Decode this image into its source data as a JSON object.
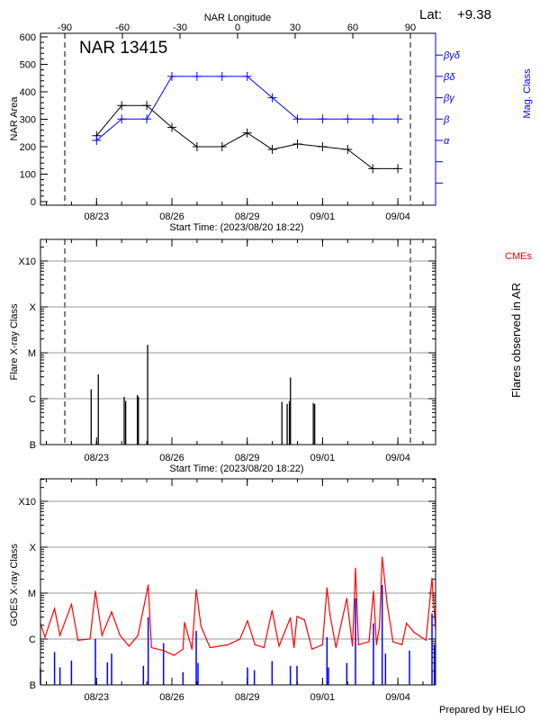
{
  "chart_data": [
    {
      "type": "line",
      "title": "NAR 13415",
      "lat_label": "Lat:",
      "lat_value": "+9.38",
      "top_axis_label": "NAR Longitude",
      "top_ticks": [
        -90,
        -60,
        -30,
        0,
        30,
        60,
        90
      ],
      "limb_longitudes": [
        -90,
        90
      ],
      "xlabel": "Start Time: (2023/08/20 18:22)",
      "x_range": [
        "08/20 18:22",
        "09/05 12:00"
      ],
      "x_ticks": [
        "08/23",
        "08/26",
        "08/29",
        "09/01",
        "09/04"
      ],
      "ylabel": "NAR Area",
      "ylim": [
        0,
        600
      ],
      "y_ticks": [
        0,
        100,
        200,
        300,
        400,
        500,
        600
      ],
      "y2label": "Mag. Class",
      "y2_ticks": [
        "α",
        "β",
        "βγ",
        "βδ",
        "βγδ"
      ],
      "dates": [
        "08/23",
        "08/24",
        "08/25",
        "08/26",
        "08/27",
        "08/28",
        "08/29",
        "08/30",
        "08/31",
        "09/01",
        "09/02",
        "09/03",
        "09/04"
      ],
      "series": [
        {
          "axis": "left",
          "color": "#000000",
          "values": [
            240,
            350,
            350,
            270,
            200,
            200,
            250,
            190,
            210,
            200,
            190,
            120,
            120
          ]
        },
        {
          "axis": "right",
          "color": "#0000ff",
          "values": [
            "α",
            "β",
            "β",
            "βδ",
            "βδ",
            "βδ",
            "βδ",
            "βγ",
            "β",
            "β",
            "β",
            "β",
            "β"
          ]
        }
      ]
    },
    {
      "type": "bar",
      "xlabel": "Start Time: (2023/08/20 18:22)",
      "x_ticks": [
        "08/23",
        "08/26",
        "08/29",
        "09/01",
        "09/04"
      ],
      "ylabel": "Flare X-ray Class",
      "y2label": "Flares observed in AR",
      "legend": {
        "label": "CMEs",
        "color": "#ff0000"
      },
      "y_ticks": [
        "B",
        "C",
        "M",
        "X",
        "X10"
      ],
      "grid": true,
      "limb_longitudes": [
        -90,
        90
      ],
      "flares": [
        {
          "time": "08/22 18:50",
          "class": "C1.6"
        },
        {
          "time": "08/23 00:00",
          "class": "B1.2"
        },
        {
          "time": "08/23 01:40",
          "class": "C3.4"
        },
        {
          "time": "08/24 02:25",
          "class": "C1.1"
        },
        {
          "time": "08/24 03:50",
          "class": "B8.9"
        },
        {
          "time": "08/24 15:00",
          "class": "C1.2"
        },
        {
          "time": "08/24 16:00",
          "class": "C1.1"
        },
        {
          "time": "08/25 00:50",
          "class": "M1.5"
        },
        {
          "time": "08/30 09:10",
          "class": "B8.5"
        },
        {
          "time": "08/30 14:10",
          "class": "B7.7"
        },
        {
          "time": "08/30 16:20",
          "class": "B8.9"
        },
        {
          "time": "08/30 17:20",
          "class": "C2.9"
        },
        {
          "time": "08/31 15:10",
          "class": "B8.1"
        },
        {
          "time": "08/31 16:30",
          "class": "B7.7"
        }
      ]
    },
    {
      "type": "line",
      "x_ticks": [
        "08/23",
        "08/26",
        "08/29",
        "09/01",
        "09/04"
      ],
      "ylabel": "GOES X-ray Class",
      "y_ticks": [
        "B",
        "C",
        "M",
        "X",
        "X10"
      ],
      "grid": true,
      "footer": "Prepared by HELIO",
      "series": [
        {
          "color": "#ff0000",
          "points": [
            [
              "08/20 18:22",
              "C2.2"
            ],
            [
              "08/20 22:40",
              "C1.1"
            ],
            [
              "08/21 07:50",
              "C4.6"
            ],
            [
              "08/21 13:00",
              "C1.2"
            ],
            [
              "08/22 00:00",
              "C5.7"
            ],
            [
              "08/22 06:15",
              "B9.4"
            ],
            [
              "08/22 17:43",
              "C1.0"
            ],
            [
              "08/22 22:52",
              "M1.1"
            ],
            [
              "08/23 05:11",
              "C1.2"
            ],
            [
              "08/23 14:22",
              "C3.9"
            ],
            [
              "08/23 22:23",
              "C1.2"
            ],
            [
              "08/24 06:59",
              "B7.0"
            ],
            [
              "08/24 15:36",
              "C1.2"
            ],
            [
              "08/25 01:21",
              "M1.5"
            ],
            [
              "08/25 04:30",
              "B6.5"
            ],
            [
              "08/25 15:59",
              "B5.6"
            ],
            [
              "08/26 02:00",
              "B4.4"
            ],
            [
              "08/26 10:36",
              "B6.0"
            ],
            [
              "08/26 12:03",
              "C2.3"
            ],
            [
              "08/26 19:12",
              "B6.0"
            ],
            [
              "08/26 23:14",
              "M1.2"
            ],
            [
              "08/27 03:49",
              "C1.9"
            ],
            [
              "08/27 12:25",
              "B6.5"
            ],
            [
              "08/28 05:37",
              "B7.5"
            ],
            [
              "08/28 17:05",
              "C1.0"
            ],
            [
              "08/29 00:16",
              "C2.5"
            ],
            [
              "08/29 07:25",
              "B7.5"
            ],
            [
              "08/29 16:02",
              "B6.5"
            ],
            [
              "08/29 23:46",
              "C4.2"
            ],
            [
              "08/30 06:22",
              "B7.0"
            ],
            [
              "08/30 17:15",
              "C2.9"
            ],
            [
              "08/30 20:41",
              "B6.5"
            ],
            [
              "08/30 23:34",
              "C3.1"
            ],
            [
              "08/31 06:45",
              "C2.6"
            ],
            [
              "08/31 13:54",
              "B6.0"
            ],
            [
              "08/31 23:56",
              "B7.5"
            ],
            [
              "09/01 04:14",
              "M1.3"
            ],
            [
              "09/01 07:06",
              "C3.4"
            ],
            [
              "09/01 12:50",
              "B6.5"
            ],
            [
              "09/01 23:10",
              "C7.7"
            ],
            [
              "09/02 04:36",
              "B7.0"
            ],
            [
              "09/02 07:29",
              "M3.5"
            ],
            [
              "09/02 10:21",
              "B7.5"
            ],
            [
              "09/02 20:22",
              "B8.7"
            ],
            [
              "09/03 00:41",
              "M1.1"
            ],
            [
              "09/03 03:33",
              "B7.5"
            ],
            [
              "09/03 06:25",
              "C1.9"
            ],
            [
              "09/03 09:00",
              "M6.1"
            ],
            [
              "09/03 13:35",
              "C6.2"
            ],
            [
              "09/03 19:19",
              "B8.7"
            ],
            [
              "09/04 03:56",
              "B7.5"
            ],
            [
              "09/04 08:14",
              "C2.2"
            ],
            [
              "09/04 15:24",
              "C1.4"
            ],
            [
              "09/05 02:52",
              "B9.4"
            ],
            [
              "09/05 08:36",
              "M2.1"
            ],
            [
              "09/05 12:00",
              "C1.6"
            ]
          ]
        },
        {
          "color": "#0000ff",
          "points": [
            [
              "08/20 18:22",
              "B2.3"
            ],
            [
              "08/21 07:50",
              "B5.2"
            ],
            [
              "08/21 13:00",
              "B2.4"
            ],
            [
              "08/22 00:00",
              "B3.4"
            ],
            [
              "08/22 22:52",
              "C1.0"
            ],
            [
              "08/23 10:21",
              "B3.1"
            ],
            [
              "08/23 14:22",
              "B4.8"
            ],
            [
              "08/24 20:45",
              "B2.6"
            ],
            [
              "08/25 01:21",
              "C3.0"
            ],
            [
              "08/25 15:59",
              "B8.1"
            ],
            [
              "08/26 10:36",
              "B1.9"
            ],
            [
              "08/26 23:14",
              "C1.5"
            ],
            [
              "08/27 00:56",
              "B3.0"
            ],
            [
              "08/29 00:16",
              "B2.4"
            ],
            [
              "08/29 06:50",
              "B2.1"
            ],
            [
              "08/29 23:46",
              "B3.3"
            ],
            [
              "08/30 17:15",
              "B2.6"
            ],
            [
              "08/30 23:34",
              "B2.6"
            ],
            [
              "09/01 04:14",
              "C1.1"
            ],
            [
              "09/01 05:40",
              "B2.4"
            ],
            [
              "09/01 23:10",
              "B3.0"
            ],
            [
              "09/02 07:29",
              "C7.7"
            ],
            [
              "09/03 00:41",
              "C2.2"
            ],
            [
              "09/03 09:00",
              "M1.5"
            ],
            [
              "09/03 12:09",
              "B4.8"
            ],
            [
              "09/04 11:05",
              "B5.6"
            ],
            [
              "09/05 08:36",
              "C3.6"
            ],
            [
              "09/05 10:51",
              "B7.5"
            ]
          ]
        }
      ]
    }
  ]
}
